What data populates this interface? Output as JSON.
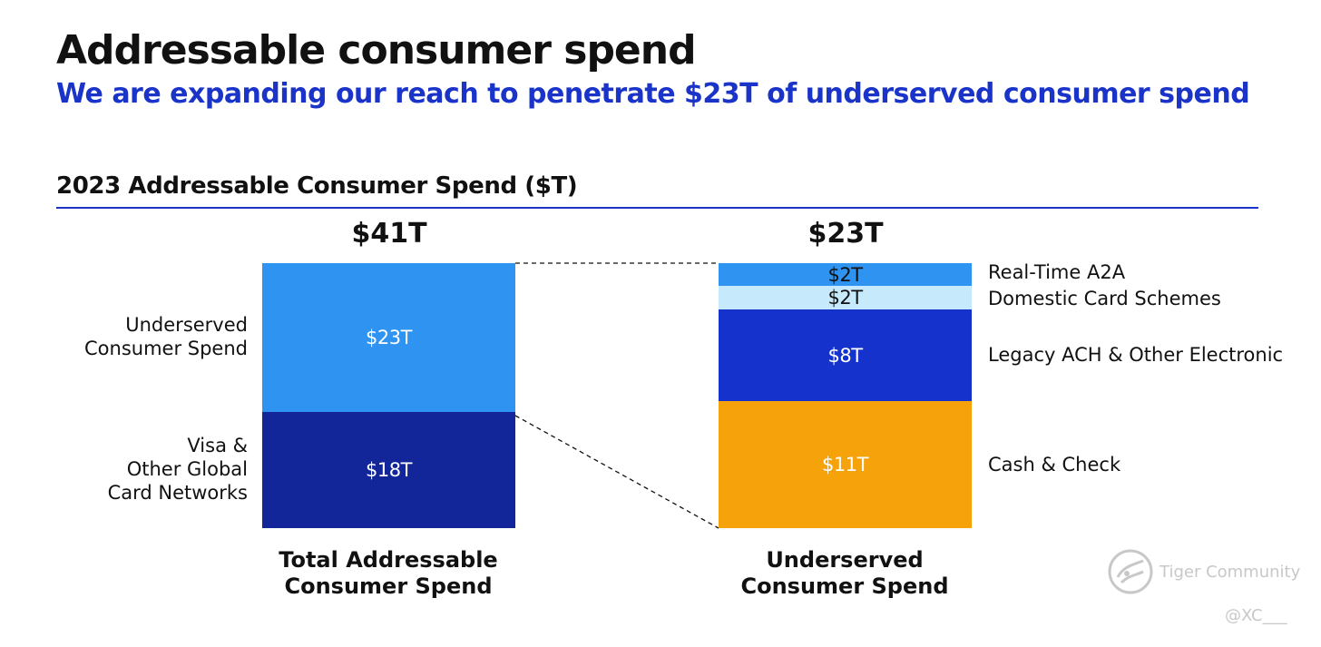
{
  "title": "Addressable consumer spend",
  "subtitle": "We are expanding our reach to penetrate $23T of underserved consumer spend",
  "chart_title": "2023 Addressable Consumer Spend ($T)",
  "colors": {
    "accent_blue": "#1a33c8",
    "underserved": "#2f93f2",
    "visa": "#12269a",
    "real_time": "#2f93f2",
    "domestic": "#c6e9fb",
    "legacy": "#1533cc",
    "cash": "#f5a20b"
  },
  "chart_data": [
    {
      "type": "bar",
      "stacked": true,
      "title": "Total Addressable Consumer Spend",
      "total_label": "$41T",
      "total": 41,
      "unit": "$T",
      "categories": [
        "Total Addressable Consumer Spend"
      ],
      "series": [
        {
          "name": "Visa & Other Global Card Networks",
          "label_lines": [
            "Visa &",
            "Other Global",
            "Card Networks"
          ],
          "values": [
            18
          ],
          "value_label": "$18T"
        },
        {
          "name": "Underserved Consumer Spend",
          "label_lines": [
            "Underserved",
            "Consumer Spend"
          ],
          "values": [
            23
          ],
          "value_label": "$23T"
        }
      ],
      "caption_lines": [
        "Total Addressable",
        "Consumer Spend"
      ]
    },
    {
      "type": "bar",
      "stacked": true,
      "title": "Underserved Consumer Spend",
      "total_label": "$23T",
      "total": 23,
      "unit": "$T",
      "categories": [
        "Underserved Consumer Spend"
      ],
      "series": [
        {
          "name": "Cash & Check",
          "values": [
            11
          ],
          "value_label": "$11T"
        },
        {
          "name": "Legacy ACH & Other Electronic",
          "values": [
            8
          ],
          "value_label": "$8T"
        },
        {
          "name": "Domestic Card Schemes",
          "values": [
            2
          ],
          "value_label": "$2T"
        },
        {
          "name": "Real-Time A2A",
          "values": [
            2
          ],
          "value_label": "$2T"
        }
      ],
      "caption_lines": [
        "Underserved",
        "Consumer Spend"
      ]
    }
  ],
  "watermark": {
    "text": "Tiger Community",
    "handle": "@XC___",
    "icon": "tiger-logo-icon"
  }
}
